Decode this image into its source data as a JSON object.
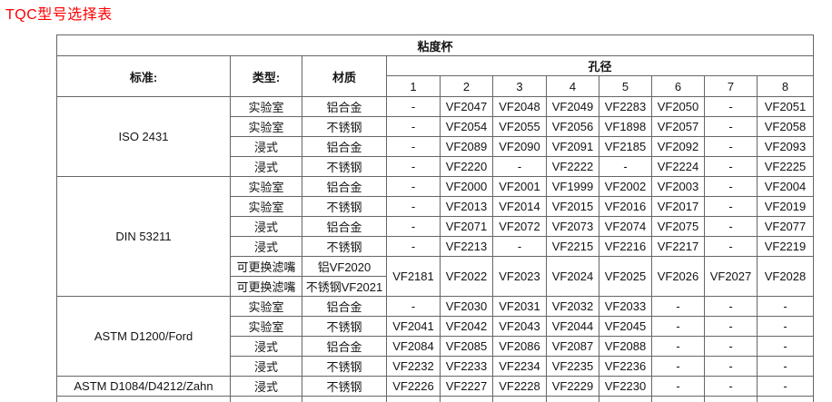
{
  "page_title": "TQC型号选择表",
  "colors": {
    "title_red": "#fe0000",
    "table_border": "#666666",
    "background": "#ffffff",
    "text": "#141414"
  },
  "table": {
    "title": "粘度杯",
    "headers": {
      "standard": "标准:",
      "type": "类型:",
      "material": "材质",
      "aperture": "孔径",
      "hole_numbers": [
        "1",
        "2",
        "3",
        "4",
        "5",
        "6",
        "7",
        "8"
      ]
    },
    "sections": [
      {
        "standard": "ISO 2431",
        "rows": [
          {
            "type": "实验室",
            "material": "铝合金",
            "values": [
              "-",
              "VF2047",
              "VF2048",
              "VF2049",
              "VF2283",
              "VF2050",
              "-",
              "VF2051"
            ]
          },
          {
            "type": "实验室",
            "material": "不锈钢",
            "values": [
              "-",
              "VF2054",
              "VF2055",
              "VF2056",
              "VF1898",
              "VF2057",
              "-",
              "VF2058"
            ]
          },
          {
            "type": "浸式",
            "material": "铝合金",
            "values": [
              "-",
              "VF2089",
              "VF2090",
              "VF2091",
              "VF2185",
              "VF2092",
              "-",
              "VF2093"
            ]
          },
          {
            "type": "浸式",
            "material": "不锈钢",
            "values": [
              "-",
              "VF2220",
              "-",
              "VF2222",
              "-",
              "VF2224",
              "-",
              "VF2225"
            ]
          }
        ]
      },
      {
        "standard": "DIN 53211",
        "rows": [
          {
            "type": "实验室",
            "material": "铝合金",
            "values": [
              "-",
              "VF2000",
              "VF2001",
              "VF1999",
              "VF2002",
              "VF2003",
              "-",
              "VF2004"
            ]
          },
          {
            "type": "实验室",
            "material": "不锈钢",
            "values": [
              "-",
              "VF2013",
              "VF2014",
              "VF2015",
              "VF2016",
              "VF2017",
              "-",
              "VF2019"
            ]
          },
          {
            "type": "浸式",
            "material": "铝合金",
            "values": [
              "-",
              "VF2071",
              "VF2072",
              "VF2073",
              "VF2074",
              "VF2075",
              "-",
              "VF2077"
            ]
          },
          {
            "type": "浸式",
            "material": "不锈钢",
            "values": [
              "-",
              "VF2213",
              "-",
              "VF2215",
              "VF2216",
              "VF2217",
              "-",
              "VF2219"
            ]
          },
          {
            "type": "可更换滤嘴",
            "material": "铝VF2020",
            "values": [
              "VF2181",
              "VF2022",
              "VF2023",
              "VF2024",
              "VF2025",
              "VF2026",
              "VF2027",
              "VF2028"
            ],
            "values_rowspan": 2
          },
          {
            "type": "可更换滤嘴",
            "material": "不锈钢VF2021",
            "values": null
          }
        ]
      },
      {
        "standard": "ASTM D1200/Ford",
        "rows": [
          {
            "type": "实验室",
            "material": "铝合金",
            "values": [
              "-",
              "VF2030",
              "VF2031",
              "VF2032",
              "VF2033",
              "-",
              "-",
              "-"
            ]
          },
          {
            "type": "实验室",
            "material": "不锈钢",
            "values": [
              "VF2041",
              "VF2042",
              "VF2043",
              "VF2044",
              "VF2045",
              "-",
              "-",
              "-"
            ]
          },
          {
            "type": "浸式",
            "material": "铝合金",
            "values": [
              "VF2084",
              "VF2085",
              "VF2086",
              "VF2087",
              "VF2088",
              "-",
              "-",
              "-"
            ]
          },
          {
            "type": "浸式",
            "material": "不锈钢",
            "values": [
              "VF2232",
              "VF2233",
              "VF2234",
              "VF2235",
              "VF2236",
              "-",
              "-",
              "-"
            ]
          }
        ]
      },
      {
        "standard": "ASTM D1084/D4212/Zahn",
        "rows": [
          {
            "type": "浸式",
            "material": "不锈钢",
            "values": [
              "VF2226",
              "VF2227",
              "VF2228",
              "VF2229",
              "VF2230",
              "-",
              "-",
              "-"
            ]
          }
        ]
      }
    ]
  }
}
